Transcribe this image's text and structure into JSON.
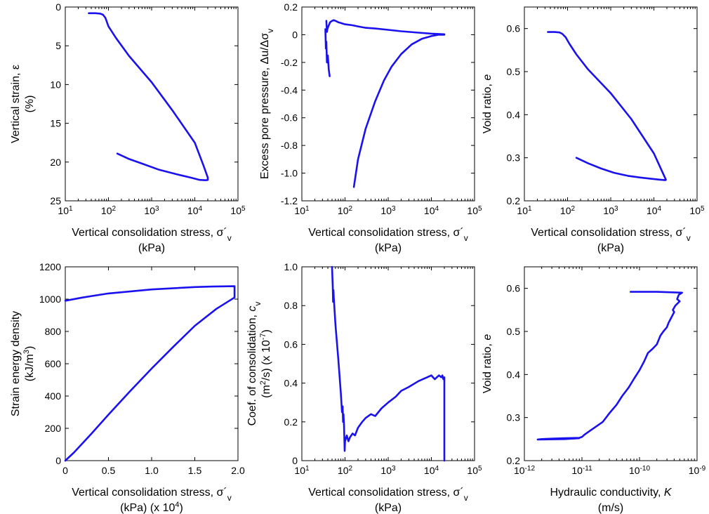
{
  "series_color": "#1a12ee",
  "chart_data": [
    {
      "id": "strain",
      "type": "line",
      "xscale": "log",
      "xlim": [
        10,
        100000
      ],
      "yinvert": true,
      "ylim": [
        0,
        25
      ],
      "xticks": [
        {
          "v": 10,
          "base": "10",
          "exp": "1"
        },
        {
          "v": 100,
          "base": "10",
          "exp": "2"
        },
        {
          "v": 1000,
          "base": "10",
          "exp": "3"
        },
        {
          "v": 10000,
          "base": "10",
          "exp": "4"
        },
        {
          "v": 100000,
          "base": "10",
          "exp": "5"
        }
      ],
      "yticks": [
        {
          "v": 0,
          "label": "0"
        },
        {
          "v": 5,
          "label": "5"
        },
        {
          "v": 10,
          "label": "10"
        },
        {
          "v": 15,
          "label": "15"
        },
        {
          "v": 20,
          "label": "20"
        },
        {
          "v": 25,
          "label": "25"
        }
      ],
      "xlabel": {
        "line1": "Vertical consolidation stress, σ´",
        "sub": "v",
        "line2": "(kPa)"
      },
      "ylabel": {
        "line1": "Vertical strain, ε",
        "line2": "(%)"
      },
      "series": [
        {
          "x": [
            35,
            50,
            65,
            75,
            85,
            100,
            150,
            300,
            1000,
            3000,
            10000,
            16000,
            20000,
            20000,
            18000,
            13000,
            8000,
            4000,
            1500,
            600,
            300,
            160
          ],
          "y": [
            0.8,
            0.8,
            0.85,
            1,
            1.4,
            2.5,
            4,
            6.3,
            9.7,
            13.3,
            17.5,
            20.5,
            22,
            22.3,
            22.35,
            22.3,
            22,
            21.6,
            21,
            20.2,
            19.6,
            18.9
          ]
        }
      ]
    },
    {
      "id": "pore-pressure",
      "type": "line",
      "xscale": "log",
      "xlim": [
        10,
        100000
      ],
      "ylim": [
        -1.2,
        0.2
      ],
      "xticks": [
        {
          "v": 10,
          "base": "10",
          "exp": "1"
        },
        {
          "v": 100,
          "base": "10",
          "exp": "2"
        },
        {
          "v": 1000,
          "base": "10",
          "exp": "3"
        },
        {
          "v": 10000,
          "base": "10",
          "exp": "4"
        },
        {
          "v": 100000,
          "base": "10",
          "exp": "5"
        }
      ],
      "yticks": [
        {
          "v": 0.2,
          "label": "0.2"
        },
        {
          "v": 0,
          "label": "0"
        },
        {
          "v": -0.2,
          "label": "-0.2"
        },
        {
          "v": -0.4,
          "label": "-0.4"
        },
        {
          "v": -0.6,
          "label": "-0.6"
        },
        {
          "v": -0.8,
          "label": "-0.8"
        },
        {
          "v": -1.0,
          "label": "-1.0"
        },
        {
          "v": -1.2,
          "label": "-1.2"
        }
      ],
      "xlabel": {
        "line1": "Vertical consolidation stress, σ´",
        "sub": "v",
        "line2": "(kPa)"
      },
      "ylabel": {
        "line1": "Excess pore pressure, Δu/Δσ",
        "sub": "v"
      },
      "series": [
        {
          "x": [
            35,
            36,
            37,
            38,
            40,
            42,
            44
          ],
          "y": [
            0.04,
            -0.1,
            -0.05,
            -0.2,
            -0.15,
            -0.25,
            -0.3
          ]
        },
        {
          "x": [
            37,
            38,
            39,
            41,
            45,
            50,
            55,
            60,
            70,
            80,
            100,
            150,
            200,
            300,
            500,
            1000,
            2000,
            5000,
            10000,
            20000
          ],
          "y": [
            0.1,
            0.02,
            0.04,
            0.06,
            0.09,
            0.1,
            0.105,
            0.1,
            0.09,
            0.085,
            0.075,
            0.068,
            0.06,
            0.05,
            0.045,
            0.035,
            0.025,
            0.015,
            0.008,
            0.003
          ]
        },
        {
          "x": [
            160,
            200,
            300,
            500,
            800,
            1200,
            2000,
            3500,
            6000,
            10000,
            15000,
            20000
          ],
          "y": [
            -1.1,
            -0.9,
            -0.68,
            -0.48,
            -0.33,
            -0.23,
            -0.14,
            -0.07,
            -0.03,
            -0.01,
            0,
            0
          ]
        }
      ]
    },
    {
      "id": "void-ratio-stress",
      "type": "line",
      "xscale": "log",
      "xlim": [
        10,
        100000
      ],
      "ylim": [
        0.2,
        0.65
      ],
      "xticks": [
        {
          "v": 10,
          "base": "10",
          "exp": "1"
        },
        {
          "v": 100,
          "base": "10",
          "exp": "2"
        },
        {
          "v": 1000,
          "base": "10",
          "exp": "3"
        },
        {
          "v": 10000,
          "base": "10",
          "exp": "4"
        },
        {
          "v": 100000,
          "base": "10",
          "exp": "5"
        }
      ],
      "yticks": [
        {
          "v": 0.2,
          "label": "0.2"
        },
        {
          "v": 0.3,
          "label": "0.3"
        },
        {
          "v": 0.4,
          "label": "0.4"
        },
        {
          "v": 0.5,
          "label": "0.5"
        },
        {
          "v": 0.6,
          "label": "0.6"
        }
      ],
      "xlabel": {
        "line1": "Vertical consolidation stress, σ´",
        "sub": "v",
        "line2": "(kPa)"
      },
      "ylabel": {
        "line1": "Void ratio, ",
        "italic": "e"
      },
      "series": [
        {
          "x": [
            35,
            50,
            65,
            75,
            90,
            110,
            160,
            300,
            1000,
            3000,
            10000,
            16000,
            19000,
            18500,
            14000,
            9000,
            5000,
            2500,
            1200,
            600,
            300,
            160
          ],
          "y": [
            0.592,
            0.592,
            0.591,
            0.588,
            0.58,
            0.565,
            0.54,
            0.505,
            0.45,
            0.39,
            0.31,
            0.265,
            0.249,
            0.248,
            0.249,
            0.251,
            0.254,
            0.258,
            0.265,
            0.275,
            0.287,
            0.3
          ]
        }
      ]
    },
    {
      "id": "strain-energy",
      "type": "line",
      "xscale": "linear",
      "xlim": [
        0,
        2.0
      ],
      "ylim": [
        0,
        1200
      ],
      "xticks": [
        {
          "v": 0,
          "label": "0"
        },
        {
          "v": 0.5,
          "label": "0.5"
        },
        {
          "v": 1.0,
          "label": "1.0"
        },
        {
          "v": 1.5,
          "label": "1.5"
        },
        {
          "v": 2.0,
          "label": "2.0"
        }
      ],
      "yticks": [
        {
          "v": 0,
          "label": "0"
        },
        {
          "v": 200,
          "label": "200"
        },
        {
          "v": 400,
          "label": "400"
        },
        {
          "v": 600,
          "label": "600"
        },
        {
          "v": 800,
          "label": "800"
        },
        {
          "v": 1000,
          "label": "1000"
        },
        {
          "v": 1200,
          "label": "1200"
        }
      ],
      "xlabel": {
        "line1": "Vertical consolidation stress, σ´",
        "sub": "v",
        "line2": "(kPa) (x 10",
        "sup2": "4",
        "line2b": ")"
      },
      "ylabel": {
        "line1": "Strain energy density",
        "line2": "(kJ/m",
        "sup2": "3",
        "line2b": ")"
      },
      "series": [
        {
          "x": [
            0,
            0.1,
            0.3,
            0.5,
            0.75,
            1.0,
            1.25,
            1.5,
            1.75,
            1.9,
            1.96,
            1.96,
            1.95,
            1.7,
            1.5,
            1.0,
            0.5,
            0.2,
            0
          ],
          "y": [
            0,
            50,
            165,
            285,
            430,
            570,
            705,
            835,
            940,
            990,
            1010,
            1080,
            1080,
            1078,
            1075,
            1060,
            1035,
            1010,
            990
          ]
        }
      ]
    },
    {
      "id": "consolidation-coef",
      "type": "line",
      "xscale": "log",
      "xlim": [
        10,
        100000
      ],
      "ylim": [
        0,
        1.0
      ],
      "xticks": [
        {
          "v": 10,
          "base": "10",
          "exp": "1"
        },
        {
          "v": 100,
          "base": "10",
          "exp": "2"
        },
        {
          "v": 1000,
          "base": "10",
          "exp": "3"
        },
        {
          "v": 10000,
          "base": "10",
          "exp": "4"
        },
        {
          "v": 100000,
          "base": "10",
          "exp": "5"
        }
      ],
      "yticks": [
        {
          "v": 0,
          "label": "0"
        },
        {
          "v": 0.2,
          "label": "0.2"
        },
        {
          "v": 0.4,
          "label": "0.4"
        },
        {
          "v": 0.6,
          "label": "0.6"
        },
        {
          "v": 0.8,
          "label": "0.8"
        },
        {
          "v": 1.0,
          "label": "1.0"
        }
      ],
      "xlabel": {
        "line1": "Vertical consolidation stress, σ´",
        "sub": "v",
        "line2": "(kPa)"
      },
      "ylabel": {
        "line1": "Coef. of consolidation, ",
        "italic": "c",
        "sub": "v",
        "line2": "(m",
        "sup2": "2",
        "line2b": "/s) (x 10",
        "sup2b": "-7",
        "line2c": ")"
      },
      "series": [
        {
          "x": [
            50,
            52,
            53,
            54,
            55,
            60,
            70,
            80,
            85,
            88,
            90,
            92,
            95,
            98,
            100,
            110,
            120,
            130,
            150,
            170,
            200,
            250,
            300,
            400,
            500,
            700,
            1000,
            1500,
            2000,
            3000,
            5000,
            8000,
            10000,
            12000,
            15000,
            17000,
            18000,
            19000,
            20000,
            20000
          ],
          "y": [
            1.0,
            0.9,
            0.82,
            0.88,
            0.84,
            0.7,
            0.52,
            0.35,
            0.25,
            0.28,
            0.2,
            0.24,
            0.18,
            0.05,
            0.1,
            0.13,
            0.1,
            0.12,
            0.14,
            0.13,
            0.17,
            0.2,
            0.22,
            0.24,
            0.23,
            0.27,
            0.3,
            0.33,
            0.36,
            0.38,
            0.41,
            0.43,
            0.44,
            0.42,
            0.44,
            0.43,
            0.44,
            0.42,
            0.43,
            0
          ]
        }
      ]
    },
    {
      "id": "void-ratio-conductivity",
      "type": "line",
      "xscale": "log",
      "xlim": [
        1e-12,
        1e-09
      ],
      "ylim": [
        0.2,
        0.65
      ],
      "xticks": [
        {
          "v": 1e-12,
          "base": "10",
          "exp": "-12"
        },
        {
          "v": 1e-11,
          "base": "10",
          "exp": "-11"
        },
        {
          "v": 1e-10,
          "base": "10",
          "exp": "-10"
        },
        {
          "v": 1e-09,
          "base": "10",
          "exp": "-9"
        }
      ],
      "yticks": [
        {
          "v": 0.2,
          "label": "0.2"
        },
        {
          "v": 0.3,
          "label": "0.3"
        },
        {
          "v": 0.4,
          "label": "0.4"
        },
        {
          "v": 0.5,
          "label": "0.5"
        },
        {
          "v": 0.6,
          "label": "0.6"
        }
      ],
      "xlabel": {
        "line1": "Hydraulic conductivity, ",
        "italic": "K",
        "line2": "(m/s)"
      },
      "ylabel": {
        "line1": "Void ratio, ",
        "italic": "e"
      },
      "series": [
        {
          "x": [
            7e-11,
            2e-10,
            5.5e-10,
            4.8e-10,
            4.5e-10,
            5e-10,
            4.2e-10,
            3.8e-10,
            4e-10,
            3.5e-10,
            3.2e-10,
            3e-10,
            2.6e-10,
            2.3e-10,
            2e-10,
            1.7e-10,
            1.4e-10,
            1.2e-10,
            1e-10,
            8e-11,
            6.5e-11,
            5e-11,
            4e-11,
            3e-11,
            2.3e-11,
            1.8e-11,
            1.4e-11,
            1.1e-11,
            1e-11,
            9e-12,
            5e-12,
            3e-12,
            2e-12,
            1.7e-12,
            5e-12,
            9e-12
          ],
          "y": [
            0.592,
            0.592,
            0.59,
            0.585,
            0.575,
            0.57,
            0.56,
            0.55,
            0.545,
            0.53,
            0.52,
            0.51,
            0.5,
            0.49,
            0.47,
            0.46,
            0.45,
            0.43,
            0.41,
            0.39,
            0.37,
            0.35,
            0.33,
            0.31,
            0.29,
            0.28,
            0.27,
            0.26,
            0.255,
            0.253,
            0.252,
            0.251,
            0.25,
            0.249,
            0.25,
            0.252
          ]
        }
      ]
    }
  ]
}
